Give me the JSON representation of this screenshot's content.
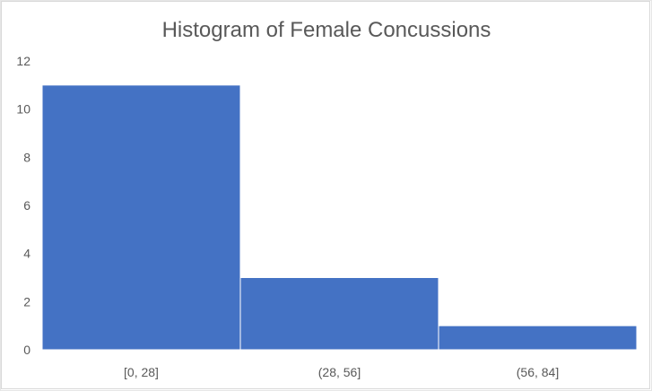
{
  "chart_data": {
    "type": "bar",
    "title": "Histogram of Female Concussions",
    "categories": [
      "[0, 28]",
      "(28, 56]",
      "(56, 84]"
    ],
    "values": [
      11,
      3,
      1
    ],
    "xlabel": "",
    "ylabel": "",
    "ylim": [
      0,
      12
    ],
    "yticks": [
      0,
      2,
      4,
      6,
      8,
      10,
      12
    ],
    "grid": false,
    "legend": "none",
    "bar_color": "#4472C4"
  }
}
